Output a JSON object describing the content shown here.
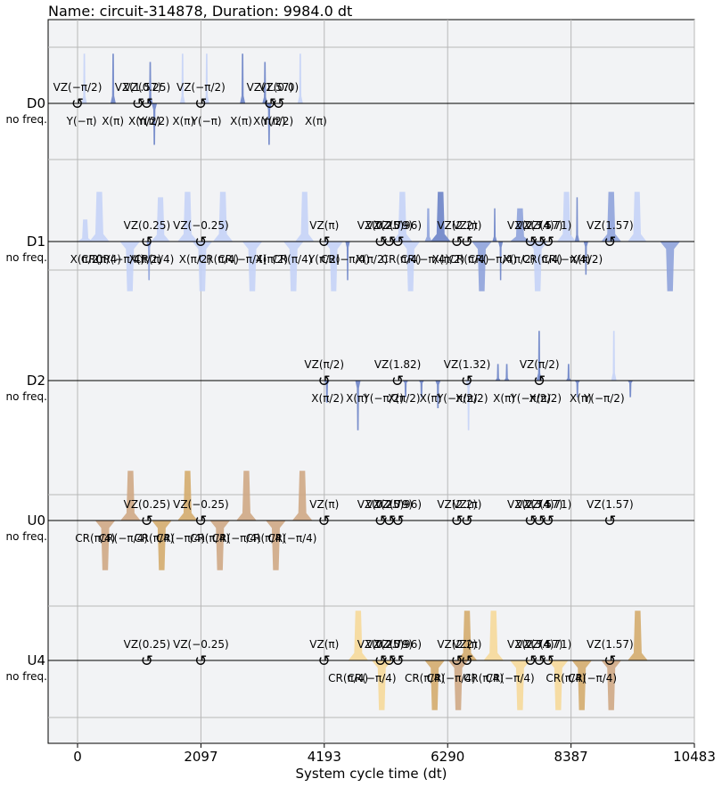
{
  "title": "Name: circuit-314878, Duration: 9984.0 dt",
  "xlabel": "System cycle time (dt)",
  "xticks": [
    0,
    2097,
    4193,
    6290,
    8387,
    10483
  ],
  "channels": [
    {
      "name": "D0",
      "sub": "no freq."
    },
    {
      "name": "D1",
      "sub": "no freq."
    },
    {
      "name": "D2",
      "sub": "no freq."
    },
    {
      "name": "U0",
      "sub": "no freq."
    },
    {
      "name": "U4",
      "sub": "no freq."
    }
  ],
  "colors": {
    "drive": "#8fa3dc",
    "drive_light": "#c5d3f7",
    "drive_dark": "#6d84c8",
    "control_light": "#f6d99a",
    "control": "#d4ac6e",
    "control_tan": "#cfa885",
    "frame": "#f2f3f5",
    "grid": "#b8b8b8"
  },
  "chart_data": {
    "type": "pulse_schedule",
    "xlim": [
      -470,
      10483
    ],
    "duration": 9984.0,
    "channels": [
      {
        "name": "D0",
        "pulses": [
          {
            "t": 70,
            "w": 90,
            "amp": 0.9,
            "tone": "light"
          },
          {
            "t": 560,
            "w": 90,
            "amp": 0.9,
            "tone": "dark"
          },
          {
            "t": 1190,
            "w": 90,
            "amp": 0.75,
            "tone": "dark"
          },
          {
            "t": 1260,
            "w": 90,
            "amp": -0.75,
            "tone": "dark"
          },
          {
            "t": 1740,
            "w": 90,
            "amp": 0.9,
            "tone": "light"
          },
          {
            "t": 2150,
            "w": 90,
            "amp": 0.9,
            "tone": "light"
          },
          {
            "t": 2760,
            "w": 90,
            "amp": 0.9,
            "tone": "dark"
          },
          {
            "t": 3140,
            "w": 90,
            "amp": 0.75,
            "tone": "dark"
          },
          {
            "t": 3210,
            "w": 90,
            "amp": -0.75,
            "tone": "dark"
          },
          {
            "t": 3740,
            "w": 90,
            "amp": 0.9,
            "tone": "light"
          }
        ],
        "vz": [
          {
            "t": 0,
            "label": "VZ(−π/2)"
          },
          {
            "t": 1030,
            "label": "VZ(1.57)"
          },
          {
            "t": 1180,
            "label": "VZ(0.25)"
          },
          {
            "t": 2097,
            "label": "VZ(−π/2)"
          },
          {
            "t": 3270,
            "label": "VZ(1.57)"
          },
          {
            "t": 3420,
            "label": "VZ(0.0)"
          }
        ],
        "gates": [
          {
            "t": 70,
            "label": "Y(−π)"
          },
          {
            "t": 600,
            "label": "X(π)"
          },
          {
            "t": 1140,
            "label": "X(π/2)"
          },
          {
            "t": 1290,
            "label": "Y(π/2)"
          },
          {
            "t": 1800,
            "label": "X(π)"
          },
          {
            "t": 2190,
            "label": "Y(−π)"
          },
          {
            "t": 2780,
            "label": "X(π)"
          },
          {
            "t": 3260,
            "label": "X(π/2)"
          },
          {
            "t": 3400,
            "label": "Y(π/2)"
          },
          {
            "t": 4050,
            "label": "X(π)"
          }
        ]
      },
      {
        "name": "D1",
        "pulses": [
          {
            "t": 0,
            "w": 260,
            "amp": 0.4,
            "tone": "light"
          },
          {
            "t": 200,
            "w": 340,
            "amp": 0.9,
            "tone": "light"
          },
          {
            "t": 720,
            "w": 340,
            "amp": -0.9,
            "tone": "light"
          },
          {
            "t": 1170,
            "w": 90,
            "amp": -0.7,
            "tone": "mid"
          },
          {
            "t": 1250,
            "w": 320,
            "amp": 0.8,
            "tone": "light"
          },
          {
            "t": 1700,
            "w": 340,
            "amp": 0.9,
            "tone": "light"
          },
          {
            "t": 1950,
            "w": 340,
            "amp": -0.9,
            "tone": "light"
          },
          {
            "t": 2300,
            "w": 340,
            "amp": 0.9,
            "tone": "light"
          },
          {
            "t": 2800,
            "w": 340,
            "amp": -0.9,
            "tone": "light"
          },
          {
            "t": 3500,
            "w": 340,
            "amp": -0.9,
            "tone": "light"
          },
          {
            "t": 3700,
            "w": 320,
            "amp": 0.9,
            "tone": "light"
          },
          {
            "t": 4193,
            "w": 320,
            "amp": -0.9,
            "tone": "light"
          },
          {
            "t": 4550,
            "w": 80,
            "amp": -0.7,
            "tone": "dark"
          },
          {
            "t": 5350,
            "w": 340,
            "amp": 0.9,
            "tone": "light"
          },
          {
            "t": 5500,
            "w": 320,
            "amp": -0.9,
            "tone": "light"
          },
          {
            "t": 5900,
            "w": 120,
            "amp": 0.6,
            "tone": "mid"
          },
          {
            "t": 6000,
            "w": 340,
            "amp": 0.9,
            "tone": "dark"
          },
          {
            "t": 6700,
            "w": 340,
            "amp": -0.9,
            "tone": "mid"
          },
          {
            "t": 7050,
            "w": 80,
            "amp": 0.6,
            "tone": "dark"
          },
          {
            "t": 7150,
            "w": 80,
            "amp": -0.7,
            "tone": "dark"
          },
          {
            "t": 7350,
            "w": 340,
            "amp": 0.6,
            "tone": "mid"
          },
          {
            "t": 7650,
            "w": 340,
            "amp": -0.9,
            "tone": "light"
          },
          {
            "t": 8150,
            "w": 320,
            "amp": 0.9,
            "tone": "light"
          },
          {
            "t": 8450,
            "w": 80,
            "amp": 0.8,
            "tone": "dark"
          },
          {
            "t": 8600,
            "w": 80,
            "amp": -0.6,
            "tone": "dark"
          },
          {
            "t": 8900,
            "w": 340,
            "amp": 0.9,
            "tone": "mid"
          },
          {
            "t": 9350,
            "w": 320,
            "amp": 0.9,
            "tone": "light"
          },
          {
            "t": 9900,
            "w": 340,
            "amp": -0.9,
            "tone": "mid"
          }
        ],
        "vz": [
          {
            "t": 1180,
            "label": "VZ(0.25)"
          },
          {
            "t": 2097,
            "label": "VZ(−0.25)"
          },
          {
            "t": 4193,
            "label": "VZ(π)"
          },
          {
            "t": 5150,
            "label": "VZ(0.25)"
          },
          {
            "t": 5300,
            "label": "VZ(2.79)"
          },
          {
            "t": 5450,
            "label": "VZ(0.96)"
          },
          {
            "t": 6450,
            "label": "VZ(2.2)"
          },
          {
            "t": 6620,
            "label": "VZ(π)"
          },
          {
            "t": 7700,
            "label": "VZ(2.74)"
          },
          {
            "t": 7850,
            "label": "VZ(3.57)"
          },
          {
            "t": 8000,
            "label": "VZ(4.71)"
          },
          {
            "t": 9050,
            "label": "VZ(1.57)"
          }
        ],
        "gates": [
          {
            "t": 150,
            "label": "X(π/2)"
          },
          {
            "t": 400,
            "label": "CR(π/4)"
          },
          {
            "t": 720,
            "label": "CR(−π/4)"
          },
          {
            "t": 1150,
            "label": "X(π/2)"
          },
          {
            "t": 1300,
            "label": "CR(π/4)"
          },
          {
            "t": 2000,
            "label": "X(π/2)"
          },
          {
            "t": 2400,
            "label": "CR(π/4)"
          },
          {
            "t": 2800,
            "label": "CR(−π/4)"
          },
          {
            "t": 3300,
            "label": "X(π/2)"
          },
          {
            "t": 3650,
            "label": "CR(π/4)"
          },
          {
            "t": 4193,
            "label": "Y(π/2)"
          },
          {
            "t": 4550,
            "label": "CR(−π/4)"
          },
          {
            "t": 5000,
            "label": "X(π/2)"
          },
          {
            "t": 5500,
            "label": "CR(π/4)"
          },
          {
            "t": 5900,
            "label": "CR(−π/4)"
          },
          {
            "t": 6300,
            "label": "X(π/2)"
          },
          {
            "t": 6650,
            "label": "CR(π/4)"
          },
          {
            "t": 7050,
            "label": "CR(−π/4)"
          },
          {
            "t": 7500,
            "label": "X(π/2)"
          },
          {
            "t": 7900,
            "label": "CR(π/4)"
          },
          {
            "t": 8300,
            "label": "CR(−π/4)"
          },
          {
            "t": 8650,
            "label": "X(π/2)"
          }
        ]
      },
      {
        "name": "D2",
        "pulses": [
          {
            "t": 4193,
            "w": 90,
            "amp": -0.4,
            "tone": "dark"
          },
          {
            "t": 4720,
            "w": 90,
            "amp": -0.9,
            "tone": "dark"
          },
          {
            "t": 5530,
            "w": 90,
            "amp": -0.3,
            "tone": "dark"
          },
          {
            "t": 5800,
            "w": 90,
            "amp": -0.3,
            "tone": "dark"
          },
          {
            "t": 6080,
            "w": 90,
            "amp": -0.5,
            "tone": "dark"
          },
          {
            "t": 6600,
            "w": 90,
            "amp": -0.9,
            "tone": "light"
          },
          {
            "t": 7100,
            "w": 90,
            "amp": 0.3,
            "tone": "dark"
          },
          {
            "t": 7250,
            "w": 90,
            "amp": 0.3,
            "tone": "dark"
          },
          {
            "t": 7800,
            "w": 90,
            "amp": 0.9,
            "tone": "dark"
          },
          {
            "t": 8300,
            "w": 90,
            "amp": 0.3,
            "tone": "dark"
          },
          {
            "t": 8450,
            "w": 90,
            "amp": -0.3,
            "tone": "dark"
          },
          {
            "t": 9070,
            "w": 90,
            "amp": 0.9,
            "tone": "light"
          },
          {
            "t": 9350,
            "w": 90,
            "amp": -0.3,
            "tone": "dark"
          }
        ],
        "vz": [
          {
            "t": 4193,
            "label": "VZ(π/2)"
          },
          {
            "t": 5440,
            "label": "VZ(1.82)"
          },
          {
            "t": 6620,
            "label": "VZ(1.32)"
          },
          {
            "t": 7850,
            "label": "VZ(π/2)"
          }
        ],
        "gates": [
          {
            "t": 4250,
            "label": "X(π/2)"
          },
          {
            "t": 4750,
            "label": "X(π)"
          },
          {
            "t": 5200,
            "label": "Y(−π/2)"
          },
          {
            "t": 5550,
            "label": "X(π/2)"
          },
          {
            "t": 6000,
            "label": "X(π)"
          },
          {
            "t": 6450,
            "label": "Y(−π/2)"
          },
          {
            "t": 6700,
            "label": "X(π/2)"
          },
          {
            "t": 7250,
            "label": "X(π)"
          },
          {
            "t": 7700,
            "label": "Y(−π/2)"
          },
          {
            "t": 7950,
            "label": "X(π/2)"
          },
          {
            "t": 8550,
            "label": "X(π)"
          },
          {
            "t": 8950,
            "label": "Y(−π/2)"
          }
        ]
      },
      {
        "name": "U0",
        "pulses": [
          {
            "t": 300,
            "w": 340,
            "amp": -0.9,
            "tone": "tan"
          },
          {
            "t": 730,
            "w": 340,
            "amp": 0.9,
            "tone": "tan"
          },
          {
            "t": 1260,
            "w": 340,
            "amp": -0.9,
            "tone": "gold"
          },
          {
            "t": 1700,
            "w": 340,
            "amp": 0.9,
            "tone": "gold"
          },
          {
            "t": 2250,
            "w": 340,
            "amp": -0.9,
            "tone": "tan"
          },
          {
            "t": 2700,
            "w": 340,
            "amp": 0.9,
            "tone": "tan"
          },
          {
            "t": 3200,
            "w": 340,
            "amp": -0.9,
            "tone": "tan"
          },
          {
            "t": 3650,
            "w": 340,
            "amp": 0.9,
            "tone": "tan"
          }
        ],
        "vz": [
          {
            "t": 1180,
            "label": "VZ(0.25)"
          },
          {
            "t": 2097,
            "label": "VZ(−0.25)"
          },
          {
            "t": 4193,
            "label": "VZ(π)"
          },
          {
            "t": 5150,
            "label": "VZ(0.25)"
          },
          {
            "t": 5300,
            "label": "VZ(2.79)"
          },
          {
            "t": 5450,
            "label": "VZ(0.96)"
          },
          {
            "t": 6450,
            "label": "VZ(2.2)"
          },
          {
            "t": 6620,
            "label": "VZ(π)"
          },
          {
            "t": 7700,
            "label": "VZ(2.74)"
          },
          {
            "t": 7850,
            "label": "VZ(3.57)"
          },
          {
            "t": 8000,
            "label": "VZ(4.71)"
          },
          {
            "t": 9050,
            "label": "VZ(1.57)"
          }
        ],
        "gates": [
          {
            "t": 300,
            "label": "CR(π/4)"
          },
          {
            "t": 780,
            "label": "CR(−π/4)"
          },
          {
            "t": 1300,
            "label": "CR(π/4)"
          },
          {
            "t": 1750,
            "label": "CR(−π/4)"
          },
          {
            "t": 2250,
            "label": "CR(π/4)"
          },
          {
            "t": 2700,
            "label": "CR(−π/4)"
          },
          {
            "t": 3200,
            "label": "CR(π/4)"
          },
          {
            "t": 3650,
            "label": "CR(−π/4)"
          }
        ]
      },
      {
        "name": "U4",
        "pulses": [
          {
            "t": 4600,
            "w": 340,
            "amp": 0.9,
            "tone": "gold_light"
          },
          {
            "t": 5000,
            "w": 340,
            "amp": -0.9,
            "tone": "gold_light"
          },
          {
            "t": 5900,
            "w": 340,
            "amp": -0.9,
            "tone": "gold"
          },
          {
            "t": 6300,
            "w": 340,
            "amp": -0.9,
            "tone": "tan"
          },
          {
            "t": 6450,
            "w": 340,
            "amp": 0.9,
            "tone": "gold"
          },
          {
            "t": 6900,
            "w": 340,
            "amp": 0.9,
            "tone": "gold_light"
          },
          {
            "t": 7350,
            "w": 340,
            "amp": -0.9,
            "tone": "gold_light"
          },
          {
            "t": 8000,
            "w": 340,
            "amp": -0.9,
            "tone": "gold_light"
          },
          {
            "t": 8400,
            "w": 340,
            "amp": -0.9,
            "tone": "gold"
          },
          {
            "t": 8900,
            "w": 340,
            "amp": -0.9,
            "tone": "tan"
          },
          {
            "t": 9350,
            "w": 340,
            "amp": 0.9,
            "tone": "gold"
          }
        ],
        "vz": [
          {
            "t": 1180,
            "label": "VZ(0.25)"
          },
          {
            "t": 2097,
            "label": "VZ(−0.25)"
          },
          {
            "t": 4193,
            "label": "VZ(π)"
          },
          {
            "t": 5150,
            "label": "VZ(0.25)"
          },
          {
            "t": 5300,
            "label": "VZ(2.79)"
          },
          {
            "t": 5450,
            "label": "VZ(0.96)"
          },
          {
            "t": 6450,
            "label": "VZ(2.2)"
          },
          {
            "t": 6620,
            "label": "VZ(π)"
          },
          {
            "t": 7700,
            "label": "VZ(2.74)"
          },
          {
            "t": 7850,
            "label": "VZ(3.57)"
          },
          {
            "t": 8000,
            "label": "VZ(4.71)"
          },
          {
            "t": 9050,
            "label": "VZ(1.57)"
          }
        ],
        "gates": [
          {
            "t": 4600,
            "label": "CR(π/4)"
          },
          {
            "t": 5000,
            "label": "CR(−π/4)"
          },
          {
            "t": 5900,
            "label": "CR(π/4)"
          },
          {
            "t": 6350,
            "label": "CR(−π/4)"
          },
          {
            "t": 6900,
            "label": "CR(π/4)"
          },
          {
            "t": 7350,
            "label": "CR(−π/4)"
          },
          {
            "t": 8300,
            "label": "CR(π/4)"
          },
          {
            "t": 8750,
            "label": "CR(−π/4)"
          }
        ]
      }
    ]
  }
}
